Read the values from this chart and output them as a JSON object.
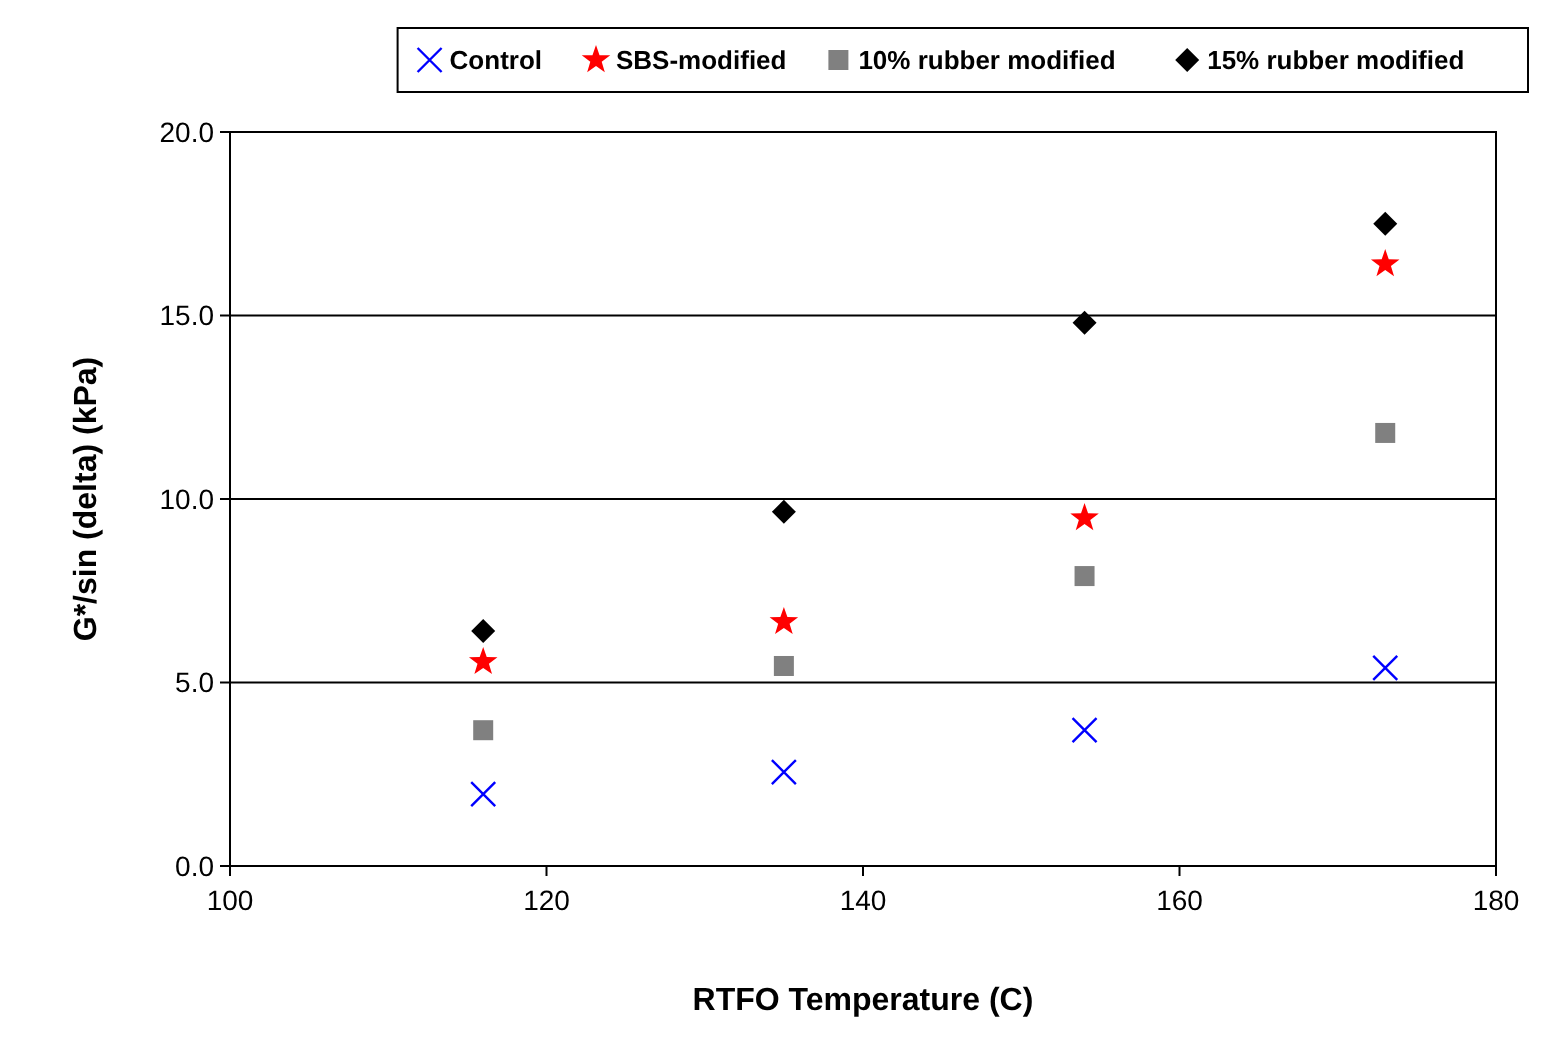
{
  "chart_data": {
    "type": "scatter",
    "xlabel": "RTFO Temperature  (C)",
    "ylabel": "G*/sin (delta)  (kPa)",
    "xlim": [
      100,
      180
    ],
    "xticks": [
      100,
      120,
      140,
      160,
      180
    ],
    "ylim": [
      0,
      20
    ],
    "yticks": [
      {
        "value": 0,
        "label": "0.0"
      },
      {
        "value": 5,
        "label": "5.0"
      },
      {
        "value": 10,
        "label": "10.0"
      },
      {
        "value": 15,
        "label": "15.0"
      },
      {
        "value": 20,
        "label": "20.0"
      }
    ],
    "grid": "y",
    "legend": "top",
    "x": [
      116,
      135,
      154,
      173
    ],
    "series": [
      {
        "name": "Control",
        "color": "#0000ff",
        "marker": "cross",
        "values": [
          1.96,
          2.56,
          3.7,
          5.4
        ]
      },
      {
        "name": "SBS-modified",
        "color": "#ff0000",
        "marker": "star",
        "values": [
          5.56,
          6.65,
          9.48,
          16.4
        ]
      },
      {
        "name": "10% rubber modified",
        "color": "#808080",
        "marker": "square",
        "values": [
          3.7,
          5.45,
          7.9,
          11.8
        ]
      },
      {
        "name": "15% rubber modified",
        "color": "#000000",
        "marker": "diamond",
        "values": [
          6.4,
          9.65,
          14.8,
          17.5
        ]
      }
    ]
  }
}
